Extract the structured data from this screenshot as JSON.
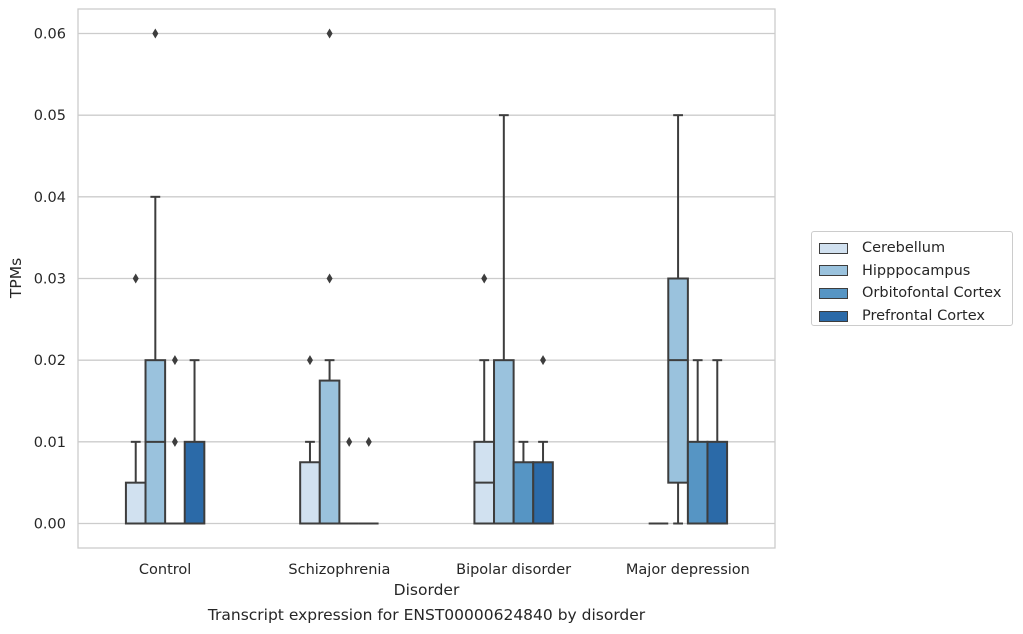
{
  "chart_data": {
    "type": "box",
    "xlabel": "Disorder",
    "ylabel": "TPMs",
    "caption": "Transcript expression for ENST00000624840 by disorder",
    "categories": [
      "Control",
      "Schizophrenia",
      "Bipolar disorder",
      "Major depression"
    ],
    "ylim": [
      -0.003,
      0.063
    ],
    "yticks": [
      "0.00",
      "0.01",
      "0.02",
      "0.03",
      "0.04",
      "0.05",
      "0.06"
    ],
    "ytick_values": [
      0,
      0.01,
      0.02,
      0.03,
      0.04,
      0.05,
      0.06
    ],
    "grid": "horizontal",
    "legend_position": "right",
    "series": [
      {
        "name": "Cerebellum",
        "color": "#d1e1f0",
        "boxes": [
          {
            "q1": 0,
            "median": 0,
            "q3": 0.005,
            "whisker_low": 0,
            "whisker_high": 0.01,
            "outliers": [
              0.03
            ]
          },
          {
            "q1": 0,
            "median": 0,
            "q3": 0.0075,
            "whisker_low": 0,
            "whisker_high": 0.01,
            "outliers": [
              0.02
            ]
          },
          {
            "q1": 0,
            "median": 0.005,
            "q3": 0.01,
            "whisker_low": 0,
            "whisker_high": 0.02,
            "outliers": [
              0.03
            ]
          },
          {
            "q1": 0,
            "median": 0,
            "q3": 0,
            "whisker_low": 0,
            "whisker_high": 0,
            "outliers": []
          }
        ]
      },
      {
        "name": "Hipppocampus",
        "color": "#9ac2dd",
        "boxes": [
          {
            "q1": 0,
            "median": 0.01,
            "q3": 0.02,
            "whisker_low": 0,
            "whisker_high": 0.04,
            "outliers": [
              0.06
            ]
          },
          {
            "q1": 0,
            "median": 0,
            "q3": 0.0175,
            "whisker_low": 0,
            "whisker_high": 0.02,
            "outliers": [
              0.03,
              0.06
            ]
          },
          {
            "q1": 0,
            "median": 0,
            "q3": 0.02,
            "whisker_low": 0,
            "whisker_high": 0.05,
            "outliers": []
          },
          {
            "q1": 0.005,
            "median": 0.02,
            "q3": 0.03,
            "whisker_low": 0,
            "whisker_high": 0.05,
            "outliers": []
          }
        ]
      },
      {
        "name": "Orbitofontal Cortex",
        "color": "#5695c4",
        "boxes": [
          {
            "q1": 0,
            "median": 0,
            "q3": 0,
            "whisker_low": 0,
            "whisker_high": 0,
            "outliers": [
              0.01,
              0.02
            ]
          },
          {
            "q1": 0,
            "median": 0,
            "q3": 0,
            "whisker_low": 0,
            "whisker_high": 0,
            "outliers": [
              0.01
            ]
          },
          {
            "q1": 0,
            "median": 0,
            "q3": 0.0075,
            "whisker_low": 0,
            "whisker_high": 0.01,
            "outliers": []
          },
          {
            "q1": 0,
            "median": 0,
            "q3": 0.01,
            "whisker_low": 0,
            "whisker_high": 0.02,
            "outliers": []
          }
        ]
      },
      {
        "name": "Prefrontal Cortex",
        "color": "#2b6aa8",
        "boxes": [
          {
            "q1": 0,
            "median": 0,
            "q3": 0.01,
            "whisker_low": 0,
            "whisker_high": 0.02,
            "outliers": []
          },
          {
            "q1": 0,
            "median": 0,
            "q3": 0,
            "whisker_low": 0,
            "whisker_high": 0,
            "outliers": [
              0.01
            ]
          },
          {
            "q1": 0,
            "median": 0,
            "q3": 0.0075,
            "whisker_low": 0,
            "whisker_high": 0.01,
            "outliers": [
              0.02
            ]
          },
          {
            "q1": 0,
            "median": 0,
            "q3": 0.01,
            "whisker_low": 0,
            "whisker_high": 0.02,
            "outliers": []
          }
        ]
      }
    ]
  }
}
